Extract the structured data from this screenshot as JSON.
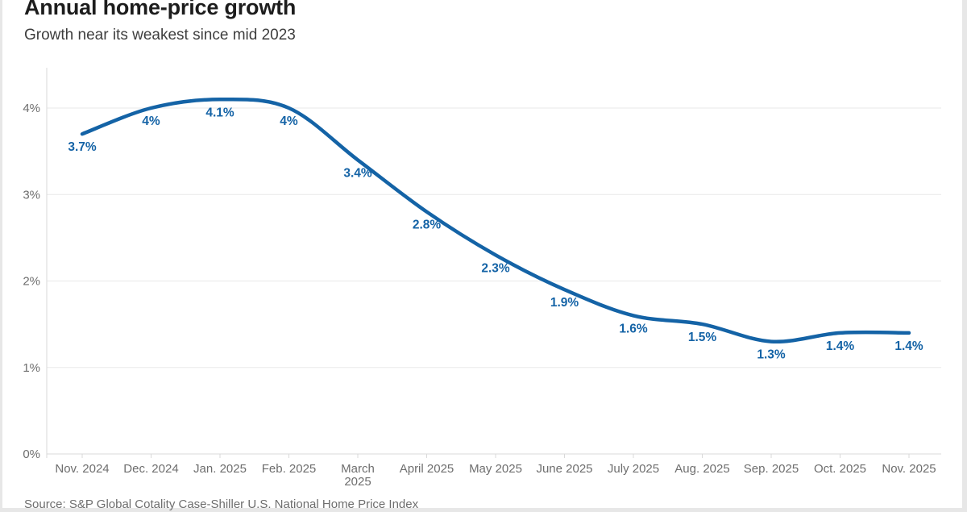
{
  "page": {
    "title": "Annual home-price growth",
    "subtitle": "Growth near its weakest since mid 2023",
    "source": "Source: S&P Global Cotality Case-Shiller U.S. National Home Price Index"
  },
  "chart_data": {
    "type": "line",
    "title": "Annual home-price growth",
    "subtitle": "Growth near its weakest since mid 2023",
    "source": "Source: S&P Global Cotality Case-Shiller U.S. National Home Price Index",
    "categories": [
      "Nov. 2024",
      "Dec. 2024",
      "Jan. 2025",
      "Feb. 2025",
      "March 2025",
      "April 2025",
      "May 2025",
      "June 2025",
      "July 2025",
      "Aug. 2025",
      "Sep. 2025",
      "Oct. 2025",
      "Nov. 2025"
    ],
    "values": [
      3.7,
      4.0,
      4.1,
      4.0,
      3.4,
      2.8,
      2.3,
      1.9,
      1.6,
      1.5,
      1.3,
      1.4,
      1.4
    ],
    "point_labels": [
      "3.7%",
      "4%",
      "4.1%",
      "4%",
      "3.4%",
      "2.8%",
      "2.3%",
      "1.9%",
      "1.6%",
      "1.5%",
      "1.3%",
      "1.4%",
      "1.4%"
    ],
    "x_axis_labels": [
      "Nov. 2024",
      "Dec. 2024",
      "Jan. 2025",
      "Feb. 2025",
      "March\n2025",
      "April 2025",
      "May 2025",
      "June 2025",
      "July 2025",
      "Aug. 2025",
      "Sep. 2025",
      "Oct. 2025",
      "Nov. 2025"
    ],
    "xlabel": "",
    "ylabel": "",
    "y_axis": {
      "ticks": [
        0,
        1,
        2,
        3,
        4
      ],
      "tick_labels": [
        "0%",
        "1%",
        "2%",
        "3%",
        "4%"
      ],
      "range": [
        0,
        4.47
      ]
    },
    "grid": "horizontal",
    "legend": "none",
    "line_smoothing": true,
    "colors": {
      "line": "#1463a6",
      "point_label": "#1463a6",
      "axis_text": "#6e6e6e",
      "gridline": "#e9e9e9",
      "axis_line": "#d9d9d9"
    }
  }
}
